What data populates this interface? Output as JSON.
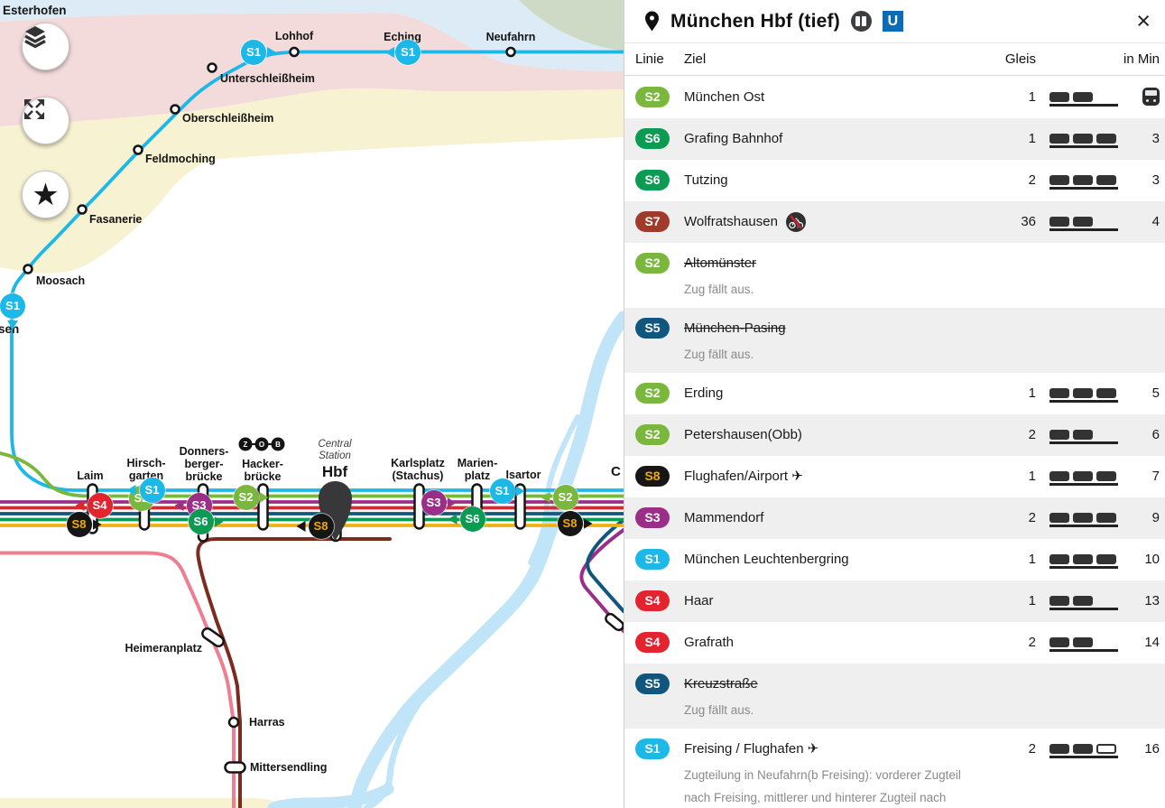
{
  "lines": {
    "S1": {
      "color": "#1cb8e8",
      "text": "#ffffff"
    },
    "S2": {
      "color": "#7ab83d",
      "text": "#ffffff"
    },
    "S3": {
      "color": "#9b2e88",
      "text": "#ffffff"
    },
    "S4": {
      "color": "#e3242e",
      "text": "#ffffff"
    },
    "S5": {
      "color": "#11567e",
      "text": "#ffffff"
    },
    "S6": {
      "color": "#0c9b53",
      "text": "#ffffff"
    },
    "S7": {
      "color": "#a03b2b",
      "text": "#ffffff"
    },
    "S8": {
      "color": "#161616",
      "text": "#f0ab00"
    },
    "S20": {
      "color": "#ef7e92",
      "text": "#ffffff"
    },
    "S7M": {
      "color": "#7c2b20",
      "text": "#ffffff"
    }
  },
  "map_colors": {
    "river": "#c0e5f8",
    "zone_blue": "#dcebf5",
    "zone_pink": "#f3dadb",
    "zone_yellow": "#f7f2d2",
    "zone_green": "#cfdac6"
  },
  "map": {
    "controls": [
      "layers-icon",
      "fullscreen-icon",
      "favorites-icon"
    ],
    "labels": {
      "esterhofen": "Esterhofen",
      "sen": "sen",
      "lohhof": "Lohhof",
      "eching": "Eching",
      "neufahrn": "Neufahrn",
      "unterschleissheim": "Unterschleißheim",
      "oberschleissheim": "Oberschleißheim",
      "feldmoching": "Feldmoching",
      "fasanerie": "Fasanerie",
      "moosach": "Moosach",
      "laim": "Laim",
      "hirschgarten_1": "Hirsch-",
      "hirschgarten_2": "garten",
      "donnersberger_1": "Donners-",
      "donnersberger_2": "berger-",
      "donnersberger_3": "brücke",
      "hacker_1": "Hacker-",
      "hacker_2": "brücke",
      "hbf": "Hbf",
      "central_1": "Central",
      "central_2": "Station",
      "karlsplatz_1": "Karlsplatz",
      "karlsplatz_2": "(Stachus)",
      "marienplatz_1": "Marien-",
      "marienplatz_2": "platz",
      "isartor": "Isartor",
      "heimeranplatz": "Heimeranplatz",
      "harras": "Harras",
      "mittersendling": "Mittersendling",
      "c_partial": "C",
      "zob_z": "Z",
      "zob_o": "O",
      "zob_b": "B"
    },
    "badges": [
      {
        "line": "S1"
      },
      {
        "line": "S1"
      },
      {
        "line": "S1"
      },
      {
        "line": "S2"
      },
      {
        "line": "S1"
      },
      {
        "line": "S4"
      },
      {
        "line": "S8"
      },
      {
        "line": "S3"
      },
      {
        "line": "S6"
      },
      {
        "line": "S2"
      },
      {
        "line": "S8"
      },
      {
        "line": "S3"
      },
      {
        "line": "S6"
      },
      {
        "line": "S1"
      },
      {
        "line": "S2"
      },
      {
        "line": "S8"
      }
    ]
  },
  "panel": {
    "header": {
      "title": "München Hbf (tief)",
      "ubahn_letter": "U",
      "close": "×"
    },
    "columns": {
      "linie": "Linie",
      "ziel": "Ziel",
      "gleis": "Gleis",
      "in_min": "in Min"
    },
    "rows": [
      {
        "line": "S2",
        "destination": "München Ost",
        "gleis": "1",
        "cars": 2,
        "min": "",
        "vehicle_icon": true
      },
      {
        "line": "S6",
        "destination": "Grafing Bahnhof",
        "gleis": "1",
        "cars": 3,
        "min": "3"
      },
      {
        "line": "S6",
        "destination": "Tutzing",
        "gleis": "2",
        "cars": 3,
        "min": "3"
      },
      {
        "line": "S7",
        "destination": "Wolfratshausen",
        "gleis": "36",
        "cars": 2,
        "min": "4",
        "no_bikes": true
      },
      {
        "line": "S2",
        "destination": "Altomünster",
        "cancelled": true,
        "note": "Zug fällt aus."
      },
      {
        "line": "S5",
        "destination": "München-Pasing",
        "cancelled": true,
        "note": "Zug fällt aus."
      },
      {
        "line": "S2",
        "destination": "Erding",
        "gleis": "1",
        "cars": 3,
        "min": "5"
      },
      {
        "line": "S2",
        "destination": "Petershausen(Obb)",
        "gleis": "2",
        "cars": 2,
        "min": "6"
      },
      {
        "line": "S8",
        "destination": "Flughafen/Airport ✈",
        "gleis": "1",
        "cars": 3,
        "min": "7"
      },
      {
        "line": "S3",
        "destination": "Mammendorf",
        "gleis": "2",
        "cars": 3,
        "min": "9"
      },
      {
        "line": "S1",
        "destination": "München Leuchtenbergring",
        "gleis": "1",
        "cars": 3,
        "min": "10"
      },
      {
        "line": "S4",
        "destination": "Haar",
        "gleis": "1",
        "cars": 2,
        "min": "13"
      },
      {
        "line": "S4",
        "destination": "Grafrath",
        "gleis": "2",
        "cars": 2,
        "min": "14"
      },
      {
        "line": "S5",
        "destination": "Kreuzstraße",
        "cancelled": true,
        "note": "Zug fällt aus."
      },
      {
        "line": "S1",
        "destination": "Freising / Flughafen ✈",
        "gleis": "2",
        "cars": 2,
        "hollow_car": true,
        "min": "16",
        "note": "Zugteilung in Neufahrn(b Freising): vorderer Zugteil nach Freising, mittlerer und hinterer Zugteil nach Flughafen ✈."
      }
    ]
  }
}
